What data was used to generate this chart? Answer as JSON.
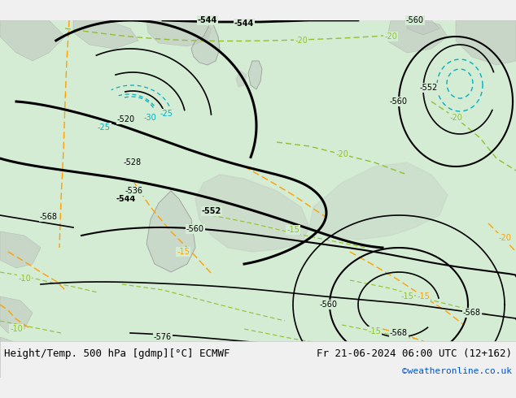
{
  "title_left": "Height/Temp. 500 hPa [gdmp][°C] ECMWF",
  "title_right": "Fr 21-06-2024 06:00 UTC (12+162)",
  "credit": "©weatheronline.co.uk",
  "bg_color": "#d8ecd8",
  "land_color": "#c8e8c8",
  "sea_color": "#e8f4e8",
  "contour_color_z500": "#000000",
  "contour_color_temp_warm": "#90c030",
  "contour_color_temp_cold": "#00b0c0",
  "contour_color_slp_pos": "#ffa000",
  "bottom_bar_color": "#f0f0f0",
  "font_size_title": 9,
  "font_size_labels": 7,
  "font_size_credit": 8
}
